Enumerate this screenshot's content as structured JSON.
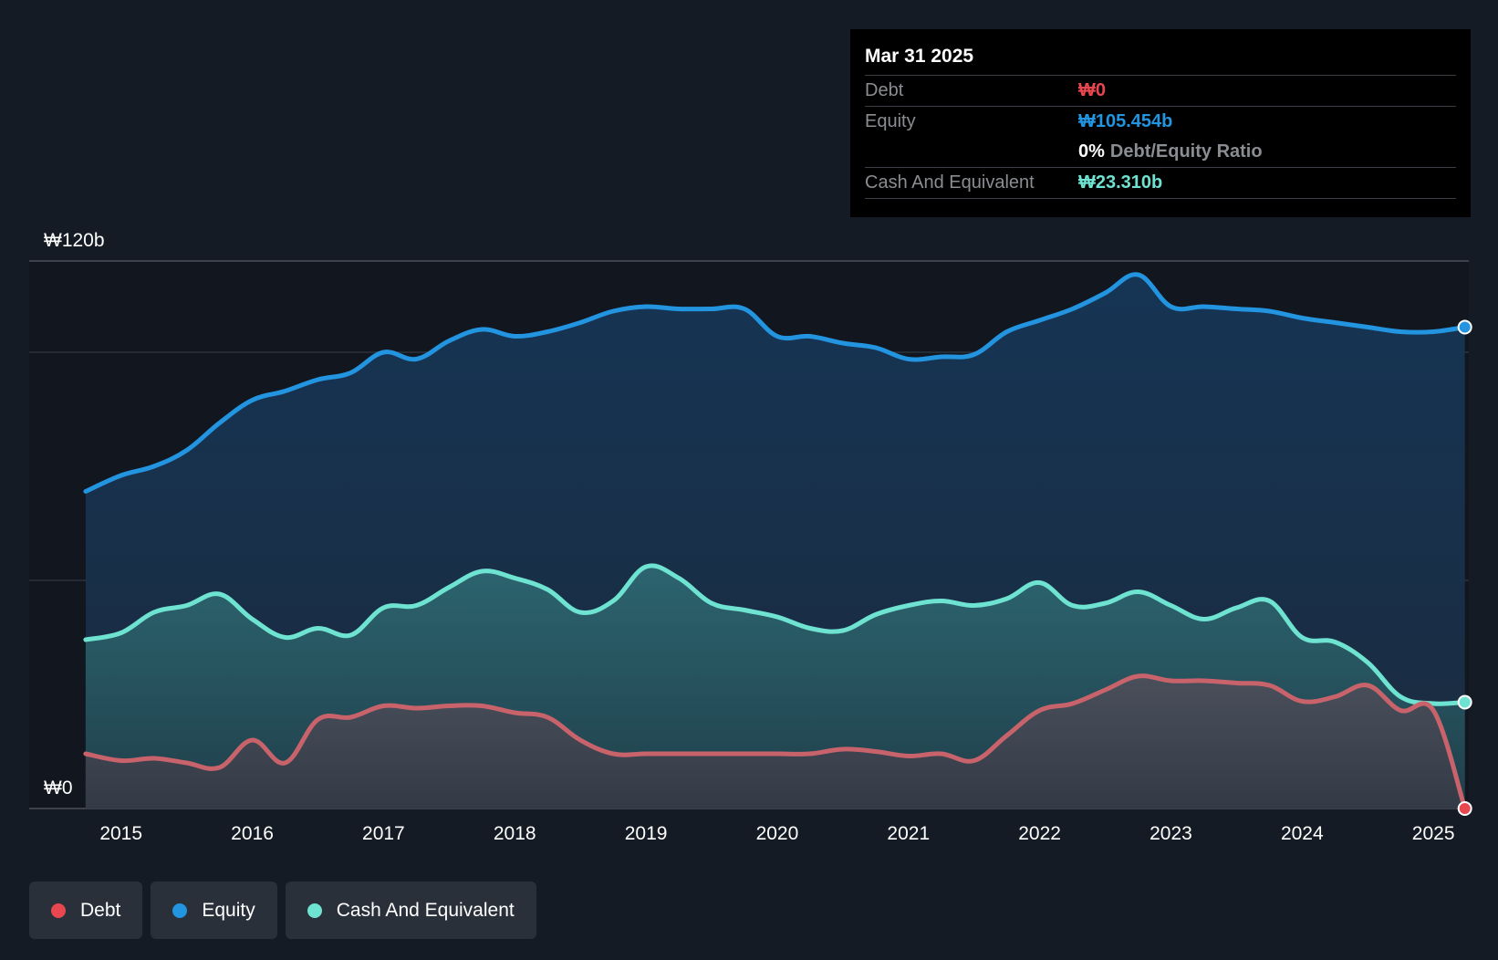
{
  "colors": {
    "debt": "#e8474f",
    "equity": "#2394df",
    "cash": "#6fe3d2",
    "debt_line": "#c9636b",
    "background": "#151b24",
    "plot_background": "#11161f"
  },
  "tooltip": {
    "date": "Mar 31 2025",
    "debt_label": "Debt",
    "debt_value": "₩0",
    "equity_label": "Equity",
    "equity_value": "₩105.454b",
    "ratio_value": "0%",
    "ratio_label": "Debt/Equity Ratio",
    "cash_label": "Cash And Equivalent",
    "cash_value": "₩23.310b"
  },
  "legend": {
    "debt": "Debt",
    "equity": "Equity",
    "cash": "Cash And Equivalent"
  },
  "chart_data": {
    "type": "area",
    "title": "",
    "xlabel": "",
    "ylabel": "",
    "ylim": [
      0,
      120
    ],
    "y_tick_labels": [
      {
        "value": 120,
        "label": "₩120b"
      },
      {
        "value": 0,
        "label": "₩0"
      }
    ],
    "gridlines": [
      0,
      50,
      100,
      120
    ],
    "x_tick_labels": [
      "2015",
      "2016",
      "2017",
      "2018",
      "2019",
      "2020",
      "2021",
      "2022",
      "2023",
      "2024",
      "2025"
    ],
    "x_tick_values": [
      2015,
      2016,
      2017,
      2018,
      2019,
      2020,
      2021,
      2022,
      2023,
      2024,
      2025
    ],
    "x_range": [
      2014.3,
      2025.27
    ],
    "series": [
      {
        "name": "Equity",
        "key": "equity",
        "x": [
          2014.73,
          2015.0,
          2015.25,
          2015.5,
          2015.75,
          2016.0,
          2016.25,
          2016.5,
          2016.75,
          2017.0,
          2017.25,
          2017.5,
          2017.75,
          2018.0,
          2018.25,
          2018.5,
          2018.75,
          2019.0,
          2019.25,
          2019.5,
          2019.75,
          2020.0,
          2020.25,
          2020.5,
          2020.75,
          2021.0,
          2021.25,
          2021.5,
          2021.75,
          2022.0,
          2022.25,
          2022.5,
          2022.75,
          2023.0,
          2023.25,
          2023.5,
          2023.75,
          2024.0,
          2024.25,
          2024.5,
          2024.75,
          2025.0,
          2025.24
        ],
        "values": [
          69.5,
          73.0,
          75.0,
          78.5,
          84.5,
          89.5,
          91.5,
          94.0,
          95.5,
          100.0,
          98.5,
          102.5,
          105.0,
          103.5,
          104.5,
          106.5,
          109.0,
          110.0,
          109.5,
          109.5,
          109.5,
          103.5,
          103.5,
          102.0,
          101.0,
          98.5,
          99.0,
          99.5,
          104.5,
          107.0,
          109.5,
          113.0,
          117.0,
          110.0,
          110.0,
          109.5,
          109.0,
          107.5,
          106.5,
          105.5,
          104.5,
          104.5,
          105.5
        ]
      },
      {
        "name": "Cash And Equivalent",
        "key": "cash",
        "x": [
          2014.73,
          2015.0,
          2015.25,
          2015.5,
          2015.75,
          2016.0,
          2016.25,
          2016.5,
          2016.75,
          2017.0,
          2017.25,
          2017.5,
          2017.75,
          2018.0,
          2018.25,
          2018.5,
          2018.75,
          2019.0,
          2019.25,
          2019.5,
          2019.75,
          2020.0,
          2020.25,
          2020.5,
          2020.75,
          2021.0,
          2021.25,
          2021.5,
          2021.75,
          2022.0,
          2022.25,
          2022.5,
          2022.75,
          2023.0,
          2023.25,
          2023.5,
          2023.75,
          2024.0,
          2024.25,
          2024.5,
          2024.75,
          2025.0,
          2025.24
        ],
        "values": [
          37.0,
          38.5,
          43.0,
          44.5,
          47.0,
          41.5,
          37.5,
          39.5,
          38.0,
          44.0,
          44.5,
          48.5,
          52.0,
          50.5,
          48.0,
          43.0,
          45.5,
          53.0,
          50.5,
          45.0,
          43.5,
          42.0,
          39.5,
          39.0,
          42.5,
          44.5,
          45.5,
          44.5,
          46.0,
          49.5,
          44.5,
          45.0,
          47.5,
          44.5,
          41.5,
          44.0,
          45.5,
          37.5,
          36.5,
          32.0,
          24.5,
          23.0,
          23.3
        ]
      },
      {
        "name": "Debt",
        "key": "debt",
        "x": [
          2014.73,
          2015.0,
          2015.25,
          2015.5,
          2015.75,
          2016.0,
          2016.25,
          2016.5,
          2016.75,
          2017.0,
          2017.25,
          2017.5,
          2017.75,
          2018.0,
          2018.25,
          2018.5,
          2018.75,
          2019.0,
          2019.25,
          2019.5,
          2019.75,
          2020.0,
          2020.25,
          2020.5,
          2020.75,
          2021.0,
          2021.25,
          2021.5,
          2021.75,
          2022.0,
          2022.25,
          2022.5,
          2022.75,
          2023.0,
          2023.25,
          2023.5,
          2023.75,
          2024.0,
          2024.25,
          2024.5,
          2024.75,
          2025.0,
          2025.24
        ],
        "values": [
          12.0,
          10.5,
          11.0,
          10.0,
          9.0,
          15.0,
          10.0,
          19.5,
          20.0,
          22.5,
          22.0,
          22.5,
          22.5,
          21.0,
          20.0,
          15.0,
          12.0,
          12.0,
          12.0,
          12.0,
          12.0,
          12.0,
          12.0,
          13.0,
          12.5,
          11.5,
          12.0,
          10.5,
          16.0,
          21.5,
          23.0,
          26.0,
          29.0,
          28.0,
          28.0,
          27.5,
          27.0,
          23.5,
          24.5,
          27.0,
          21.5,
          21.5,
          0.0
        ]
      }
    ]
  }
}
